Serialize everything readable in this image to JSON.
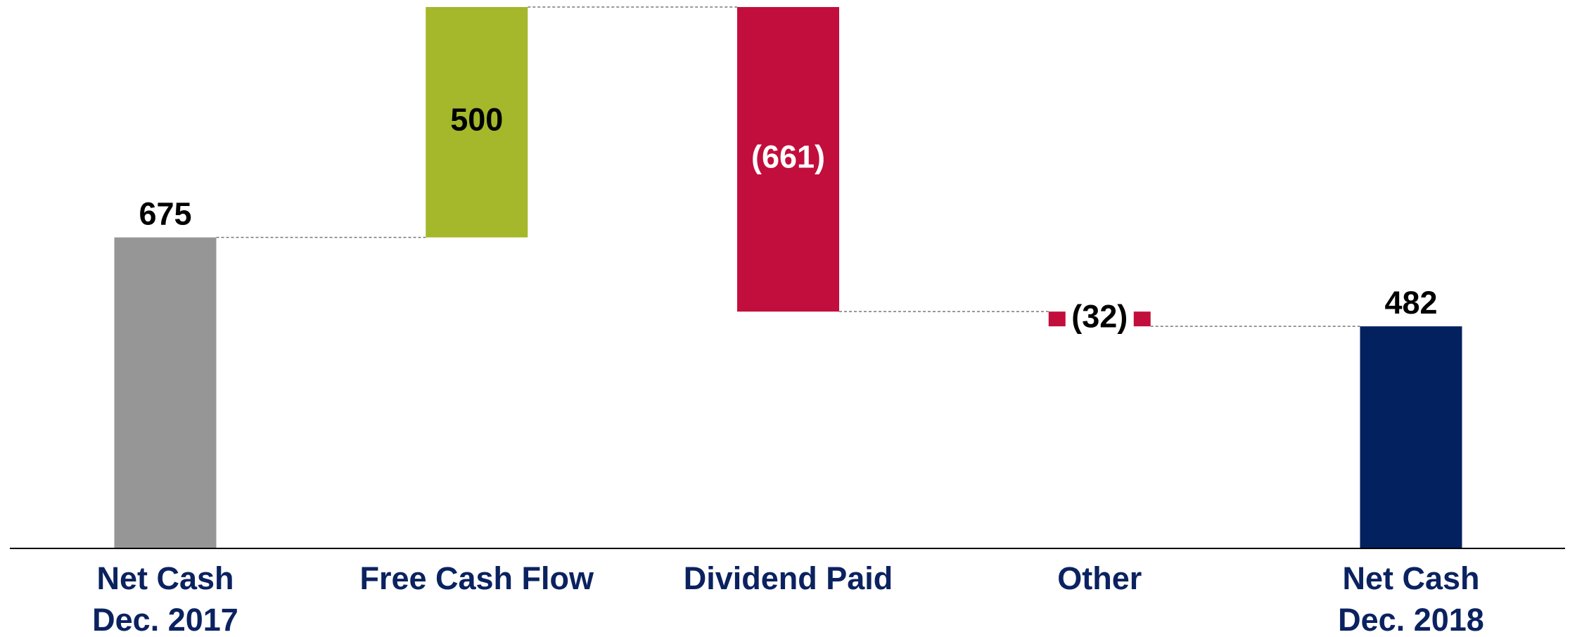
{
  "chart_data": {
    "type": "waterfall",
    "categories": [
      "Net Cash\nDec. 2017",
      "Free Cash Flow",
      "Dividend Paid",
      "Other",
      "Net Cash\nDec. 2018"
    ],
    "values": [
      675,
      500,
      -661,
      -32,
      482
    ],
    "value_labels": [
      "675",
      "500",
      "(661)",
      "(32)",
      "482"
    ],
    "is_total": [
      true,
      false,
      false,
      false,
      true
    ],
    "colors": [
      "#969696",
      "#a5b72a",
      "#c20e3c",
      "#c20e3c",
      "#03215e"
    ],
    "label_colors": [
      "#000000",
      "#000000",
      "#ffffff",
      "#000000",
      "#000000"
    ]
  }
}
